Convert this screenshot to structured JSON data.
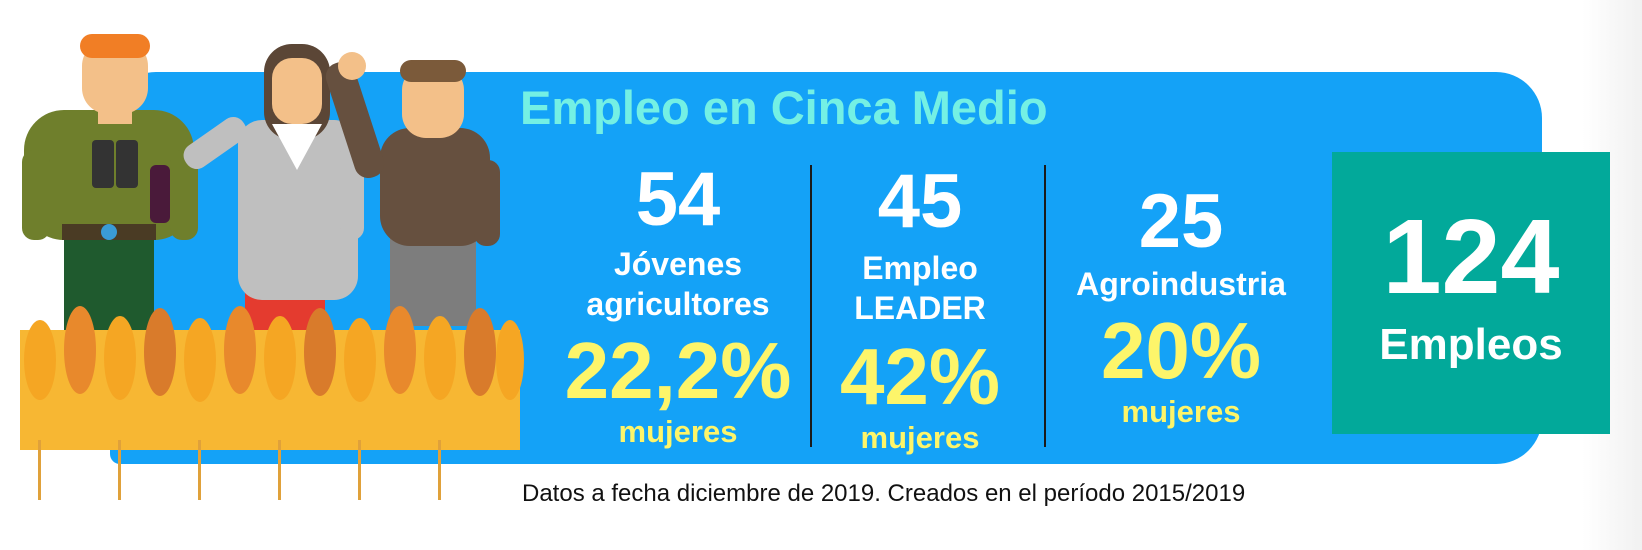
{
  "title": "Empleo en Cinca Medio",
  "stats": [
    {
      "number": "54",
      "label_line1": "Jóvenes",
      "label_line2": "agricultores",
      "women_pct": "22,2%",
      "women_label": "mujeres"
    },
    {
      "number": "45",
      "label_line1": "Empleo",
      "label_line2": "LEADER",
      "women_pct": "42%",
      "women_label": "mujeres"
    },
    {
      "number": "25",
      "label_line1": "Agroindustria",
      "women_pct": "20%",
      "women_label": "mujeres"
    }
  ],
  "total": {
    "number": "124",
    "label": "Empleos"
  },
  "footnote": "Datos a fecha diciembre de 2019. Creados en el período 2015/2019",
  "colors": {
    "banner": "#14a2f7",
    "title": "#74f0e4",
    "highlight": "#fdf56a",
    "total_box": "#02a99a"
  }
}
